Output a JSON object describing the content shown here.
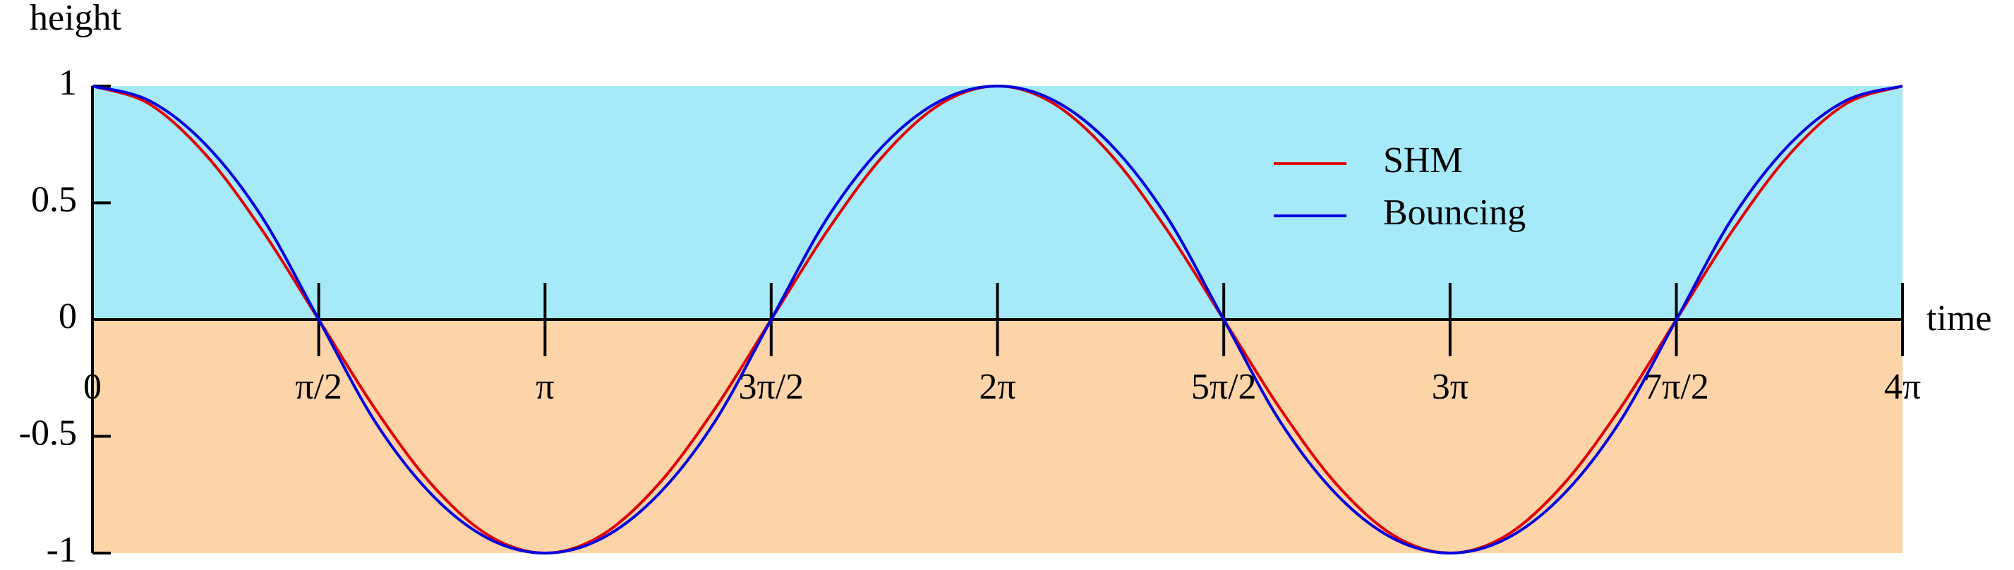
{
  "chart_data": {
    "type": "line",
    "ylabel": "height",
    "xlabel": "time",
    "x": [
      0,
      0.393,
      0.785,
      1.178,
      1.571,
      1.963,
      2.356,
      2.749,
      3.142,
      3.534,
      3.927,
      4.32,
      4.712,
      5.105,
      5.498,
      5.89,
      6.283,
      6.676,
      7.069,
      7.461,
      7.854,
      8.247,
      8.639,
      9.032,
      9.425,
      9.817,
      10.21,
      10.603,
      10.996,
      11.388,
      11.781,
      12.174,
      12.566
    ],
    "series": [
      {
        "name": "SHM",
        "color": "#e00000",
        "values": [
          1,
          0.924,
          0.707,
          0.383,
          0,
          -0.383,
          -0.707,
          -0.924,
          -1,
          -0.924,
          -0.707,
          -0.383,
          0,
          0.383,
          0.707,
          0.924,
          1,
          0.924,
          0.707,
          0.383,
          0,
          -0.383,
          -0.707,
          -0.924,
          -1,
          -0.924,
          -0.707,
          -0.383,
          0,
          0.383,
          0.707,
          0.924,
          1
        ]
      },
      {
        "name": "Bouncing",
        "color": "#0000e0",
        "values": [
          1,
          0.938,
          0.75,
          0.438,
          0,
          -0.438,
          -0.75,
          -0.938,
          -1,
          -0.938,
          -0.75,
          -0.438,
          0,
          0.438,
          0.75,
          0.938,
          1,
          0.938,
          0.75,
          0.438,
          0,
          -0.438,
          -0.75,
          -0.938,
          -1,
          -0.938,
          -0.75,
          -0.438,
          0,
          0.438,
          0.75,
          0.938,
          1
        ]
      }
    ],
    "xlim": [
      0,
      12.566
    ],
    "ylim": [
      -1,
      1
    ],
    "xticks": [
      0,
      {
        "value": 1.571,
        "label": "π/2"
      },
      {
        "value": 3.142,
        "label": "π"
      },
      {
        "value": 4.712,
        "label": "3π/2"
      },
      {
        "value": 6.283,
        "label": "2π"
      },
      {
        "value": 7.854,
        "label": "5π/2"
      },
      {
        "value": 9.425,
        "label": "3π"
      },
      {
        "value": 10.996,
        "label": "7π/2"
      },
      {
        "value": 12.566,
        "label": "4π"
      }
    ],
    "yticks": [
      -1,
      -0.5,
      0,
      0.5,
      1
    ],
    "fill_above": "#a6e9f9",
    "fill_below": "#fdd4a8"
  }
}
